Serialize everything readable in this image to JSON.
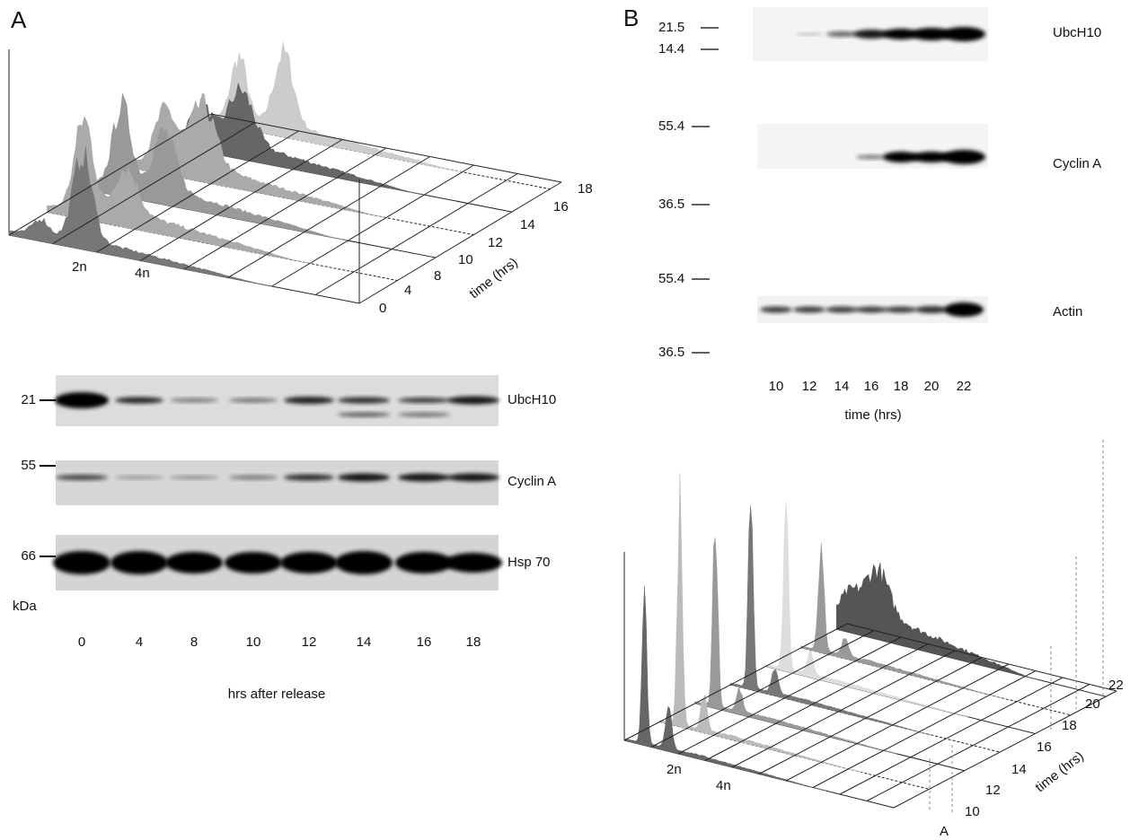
{
  "panel_a": {
    "label": "A",
    "histogram": {
      "peak_labels": [
        "2n",
        "4n"
      ],
      "time_ticks": [
        "0",
        "4",
        "8",
        "10",
        "12",
        "14",
        "16",
        "18"
      ],
      "time_label": "time (hrs)"
    },
    "blot": {
      "rows": [
        {
          "marker": "21",
          "name": "UbcH10"
        },
        {
          "marker": "55",
          "name": "Cyclin A"
        },
        {
          "marker": "66",
          "name": "Hsp 70"
        }
      ],
      "unit": "kDa",
      "lanes": [
        "0",
        "4",
        "8",
        "10",
        "12",
        "14",
        "16",
        "18"
      ],
      "xlabel": "hrs after release"
    }
  },
  "panel_b": {
    "label": "B",
    "blot": {
      "markers": [
        "21.5",
        "14.4",
        "55.4",
        "36.5",
        "55.4",
        "36.5"
      ],
      "rows": [
        "UbcH10",
        "Cyclin A",
        "Actin"
      ],
      "lanes": [
        "10",
        "12",
        "14",
        "16",
        "18",
        "20",
        "22"
      ],
      "xlabel": "time (hrs)"
    },
    "histogram": {
      "peak_labels": [
        "2n",
        "4n"
      ],
      "time_ticks": [
        "10",
        "12",
        "14",
        "16",
        "18",
        "20",
        "22"
      ],
      "time_label": "time (hrs)",
      "corner_label": "A"
    }
  }
}
